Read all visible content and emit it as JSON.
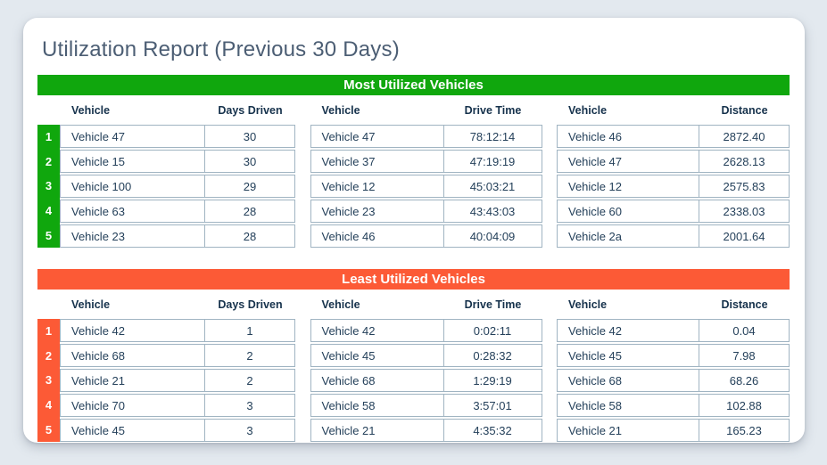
{
  "page_title": "Utilization Report (Previous 30 Days)",
  "colors": {
    "page_background": "#e3e9ef",
    "card_background": "#ffffff",
    "most_accent": "#10a70d",
    "least_accent": "#fc5a36",
    "title_text": "#4c5e74",
    "header_text": "#16324c",
    "cell_text": "#24405a",
    "table_border": "#a0b4c2"
  },
  "sections": [
    {
      "title": "Most Utilized Vehicles",
      "accent": "#10a70d",
      "tables": [
        {
          "columns": [
            "Vehicle",
            "Days Driven"
          ],
          "rows": [
            {
              "rank": "1",
              "vehicle": "Vehicle 47",
              "value": "30"
            },
            {
              "rank": "2",
              "vehicle": "Vehicle 15",
              "value": "30"
            },
            {
              "rank": "3",
              "vehicle": "Vehicle 100",
              "value": "29"
            },
            {
              "rank": "4",
              "vehicle": "Vehicle 63",
              "value": "28"
            },
            {
              "rank": "5",
              "vehicle": "Vehicle 23",
              "value": "28"
            }
          ]
        },
        {
          "columns": [
            "Vehicle",
            "Drive Time"
          ],
          "rows": [
            {
              "vehicle": "Vehicle 47",
              "value": "78:12:14"
            },
            {
              "vehicle": "Vehicle 37",
              "value": "47:19:19"
            },
            {
              "vehicle": "Vehicle 12",
              "value": "45:03:21"
            },
            {
              "vehicle": "Vehicle 23",
              "value": "43:43:03"
            },
            {
              "vehicle": "Vehicle 46",
              "value": "40:04:09"
            }
          ]
        },
        {
          "columns": [
            "Vehicle",
            "Distance"
          ],
          "rows": [
            {
              "vehicle": "Vehicle 46",
              "value": "2872.40"
            },
            {
              "vehicle": "Vehicle 47",
              "value": "2628.13"
            },
            {
              "vehicle": "Vehicle 12",
              "value": "2575.83"
            },
            {
              "vehicle": "Vehicle 60",
              "value": "2338.03"
            },
            {
              "vehicle": "Vehicle 2a",
              "value": "2001.64"
            }
          ]
        }
      ]
    },
    {
      "title": "Least Utilized Vehicles",
      "accent": "#fc5a36",
      "tables": [
        {
          "columns": [
            "Vehicle",
            "Days Driven"
          ],
          "rows": [
            {
              "rank": "1",
              "vehicle": "Vehicle 42",
              "value": "1"
            },
            {
              "rank": "2",
              "vehicle": "Vehicle 68",
              "value": "2"
            },
            {
              "rank": "3",
              "vehicle": "Vehicle 21",
              "value": "2"
            },
            {
              "rank": "4",
              "vehicle": "Vehicle 70",
              "value": "3"
            },
            {
              "rank": "5",
              "vehicle": "Vehicle 45",
              "value": "3"
            }
          ]
        },
        {
          "columns": [
            "Vehicle",
            "Drive Time"
          ],
          "rows": [
            {
              "vehicle": "Vehicle 42",
              "value": "0:02:11"
            },
            {
              "vehicle": "Vehicle 45",
              "value": "0:28:32"
            },
            {
              "vehicle": "Vehicle 68",
              "value": "1:29:19"
            },
            {
              "vehicle": "Vehicle 58",
              "value": "3:57:01"
            },
            {
              "vehicle": "Vehicle 21",
              "value": "4:35:32"
            }
          ]
        },
        {
          "columns": [
            "Vehicle",
            "Distance"
          ],
          "rows": [
            {
              "vehicle": "Vehicle 42",
              "value": "0.04"
            },
            {
              "vehicle": "Vehicle 45",
              "value": "7.98"
            },
            {
              "vehicle": "Vehicle 68",
              "value": "68.26"
            },
            {
              "vehicle": "Vehicle 58",
              "value": "102.88"
            },
            {
              "vehicle": "Vehicle 21",
              "value": "165.23"
            }
          ]
        }
      ]
    }
  ]
}
